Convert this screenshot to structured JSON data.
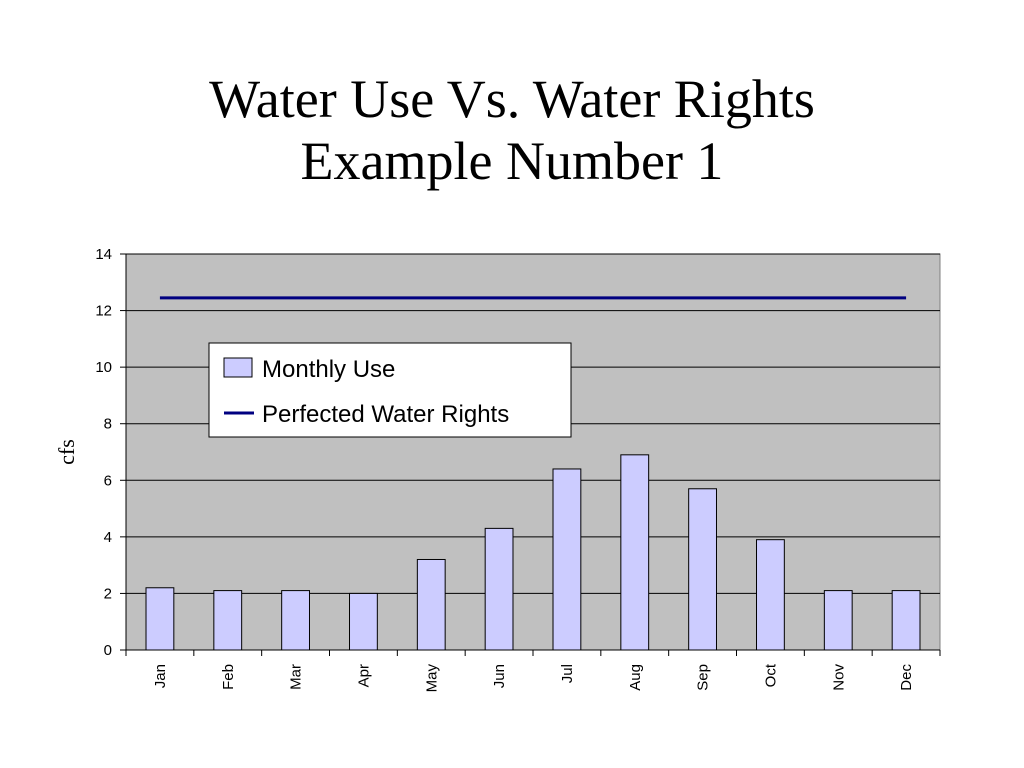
{
  "title": {
    "line1": "Water Use Vs. Water Rights",
    "line2": "Example Number 1"
  },
  "chart_data": {
    "type": "bar",
    "categories": [
      "Jan",
      "Feb",
      "Mar",
      "Apr",
      "May",
      "Jun",
      "Jul",
      "Aug",
      "Sep",
      "Oct",
      "Nov",
      "Dec"
    ],
    "series": [
      {
        "name": "Monthly Use",
        "type": "bar",
        "values": [
          2.2,
          2.1,
          2.1,
          2.0,
          3.2,
          4.3,
          6.4,
          6.9,
          5.7,
          3.9,
          2.1,
          2.1
        ]
      },
      {
        "name": "Perfected Water Rights",
        "type": "line",
        "values": [
          12.45,
          12.45,
          12.45,
          12.45,
          12.45,
          12.45,
          12.45,
          12.45,
          12.45,
          12.45,
          12.45,
          12.45
        ]
      }
    ],
    "ylabel": "cfs",
    "xlabel": "",
    "ylim": [
      0,
      14
    ],
    "yticks": [
      0,
      2,
      4,
      6,
      8,
      10,
      12,
      14
    ],
    "grid": true,
    "legend_position": "upper-left",
    "colors": {
      "plot_background": "#c0c0c0",
      "bar_fill": "#ccccff",
      "bar_stroke": "#000000",
      "line": "#000080",
      "gridline": "#000000"
    }
  }
}
